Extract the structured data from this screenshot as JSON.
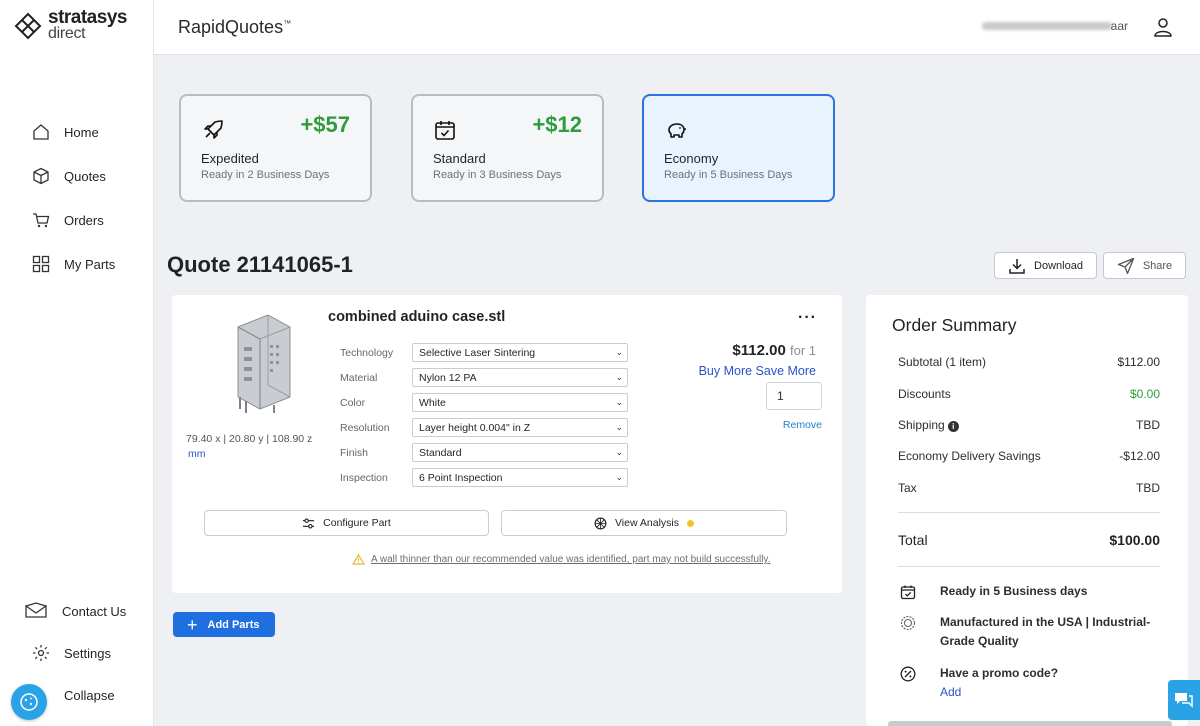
{
  "logo": {
    "line1": "stratasys",
    "line2": "direct"
  },
  "app": {
    "brand": "RapidQuotes",
    "tm": "™"
  },
  "user": {
    "name_suffix": "aar"
  },
  "sidebar": {
    "items": [
      {
        "label": "Home",
        "icon": "home-icon"
      },
      {
        "label": "Quotes",
        "icon": "box-icon"
      },
      {
        "label": "Orders",
        "icon": "cart-icon"
      },
      {
        "label": "My Parts",
        "icon": "grid-icon"
      }
    ],
    "bottom": [
      {
        "label": "Contact Us",
        "icon": "mail-icon"
      },
      {
        "label": "Settings",
        "icon": "gear-icon"
      },
      {
        "label": "Collapse",
        "icon": "collapse-icon"
      }
    ]
  },
  "delivery": [
    {
      "title": "Expedited",
      "subtitle": "Ready in 2 Business Days",
      "price": "+$57",
      "icon": "rocket-icon",
      "selected": false
    },
    {
      "title": "Standard",
      "subtitle": "Ready in 3 Business Days",
      "price": "+$12",
      "icon": "calendar-check-icon",
      "selected": false
    },
    {
      "title": "Economy",
      "subtitle": "Ready in 5 Business Days",
      "price": "",
      "icon": "piggy-bank-icon",
      "selected": true
    }
  ],
  "quote": {
    "title": "Quote 21141065-1",
    "download_label": "Download",
    "share_label": "Share"
  },
  "part": {
    "name": "combined aduino case.stl",
    "dims": "79.40 x | 20.80 y | 108.90 z",
    "unit": "mm",
    "specs": [
      {
        "label": "Technology",
        "value": "Selective Laser Sintering"
      },
      {
        "label": "Material",
        "value": "Nylon 12 PA"
      },
      {
        "label": "Color",
        "value": "White"
      },
      {
        "label": "Resolution",
        "value": "Layer height 0.004\" in Z"
      },
      {
        "label": "Finish",
        "value": "Standard"
      },
      {
        "label": "Inspection",
        "value": "6 Point Inspection"
      }
    ],
    "price": "$112.00",
    "price_for": "for 1",
    "buy_more": "Buy More Save More",
    "quantity": "1",
    "remove_label": "Remove",
    "configure_label": "Configure Part",
    "analysis_label": "View Analysis",
    "warning": "A wall thinner than our recommended value was identified, part may not build successfully."
  },
  "add_parts_label": "Add Parts",
  "summary": {
    "title": "Order Summary",
    "rows": [
      {
        "label": "Subtotal (1 item)",
        "value": "$112.00"
      },
      {
        "label": "Discounts",
        "value": "$0.00"
      },
      {
        "label": "Shipping",
        "value": "TBD"
      },
      {
        "label": "Economy Delivery Savings",
        "value": "-$12.00"
      },
      {
        "label": "Tax",
        "value": "TBD"
      }
    ],
    "total_label": "Total",
    "total_value": "$100.00",
    "ready": "Ready in 5 Business days",
    "manufactured": "Manufactured in the USA | Industrial-Grade Quality",
    "promo": "Have a promo code?",
    "promo_add": "Add"
  },
  "colors": {
    "accent": "#1f6fe0",
    "green": "#2e9c3c",
    "link": "#2a53c9"
  }
}
